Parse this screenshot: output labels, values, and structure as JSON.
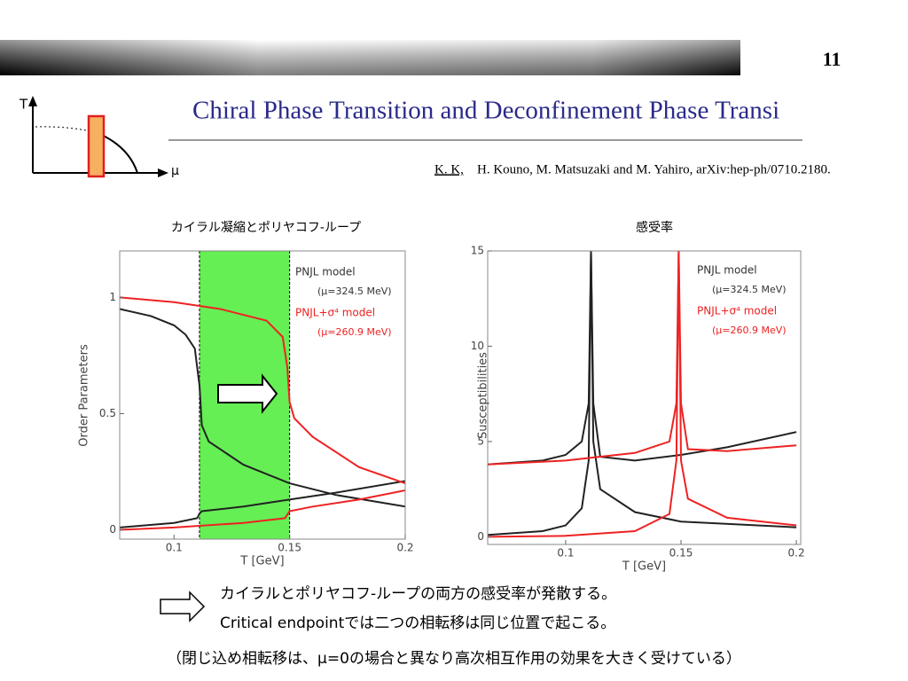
{
  "page_number": "11",
  "title": "Chiral Phase Transition and Deconfinement Phase Transi",
  "diagram": {
    "y_label": "T",
    "x_label": "μ"
  },
  "reference": {
    "author_underlined": "K. K,",
    "rest": "H. Kouno, M. Matsuzaki  and  M. Yahiro, arXiv:hep-ph/0710.2180."
  },
  "chart_data": [
    {
      "type": "line",
      "title": "カイラル凝縮とポリヤコフ-ループ",
      "xlabel": "T [GeV]",
      "ylabel": "Order Parameters",
      "xlim": [
        0.0765,
        0.2
      ],
      "ylim": [
        -0.04,
        1.2
      ],
      "xticks": [
        0.1,
        0.15,
        0.2
      ],
      "yticks": [
        0,
        0.5,
        1
      ],
      "band": {
        "x": [
          0.111,
          0.15
        ],
        "color": "#66ee55"
      },
      "legend": [
        {
          "name": "PNJL model",
          "note": "(μ=324.5 MeV)",
          "color": "#333333"
        },
        {
          "name": "PNJL+σ⁴ model",
          "note": "(μ=260.9 MeV)",
          "color": "#ee2222"
        }
      ],
      "series": [
        {
          "color": "#222222",
          "x": [
            0.0765,
            0.09,
            0.1,
            0.105,
            0.109,
            0.111,
            0.112,
            0.115,
            0.13,
            0.15,
            0.17,
            0.2
          ],
          "values": [
            0.95,
            0.92,
            0.88,
            0.84,
            0.78,
            0.62,
            0.45,
            0.38,
            0.28,
            0.2,
            0.15,
            0.1
          ]
        },
        {
          "color": "#222222",
          "x": [
            0.0765,
            0.1,
            0.11,
            0.111,
            0.112,
            0.13,
            0.15,
            0.17,
            0.2
          ],
          "values": [
            0.01,
            0.03,
            0.05,
            0.07,
            0.08,
            0.1,
            0.13,
            0.16,
            0.21
          ]
        },
        {
          "color": "#ee2222",
          "x": [
            0.0765,
            0.1,
            0.12,
            0.14,
            0.147,
            0.149,
            0.15,
            0.152,
            0.16,
            0.18,
            0.2
          ],
          "values": [
            1.0,
            0.98,
            0.95,
            0.9,
            0.83,
            0.7,
            0.55,
            0.48,
            0.4,
            0.27,
            0.2
          ]
        },
        {
          "color": "#ee2222",
          "x": [
            0.0765,
            0.1,
            0.13,
            0.148,
            0.15,
            0.16,
            0.18,
            0.2
          ],
          "values": [
            0.0,
            0.01,
            0.03,
            0.05,
            0.08,
            0.1,
            0.13,
            0.17
          ]
        }
      ]
    },
    {
      "type": "line",
      "title": "感受率",
      "xlabel": "T [GeV]",
      "ylabel": "Susceptibilities",
      "xlim": [
        0.0662,
        0.2019
      ],
      "ylim": [
        -0.4,
        15
      ],
      "xticks": [
        0.1,
        0.15,
        0.2
      ],
      "yticks": [
        0,
        5,
        10,
        15
      ],
      "legend": [
        {
          "name": "PNJL model",
          "note": "(μ=324.5 MeV)",
          "color": "#333333"
        },
        {
          "name": "PNJL+σ⁴ model",
          "note": "(μ=260.9 MeV)",
          "color": "#ee2222"
        }
      ],
      "series": [
        {
          "color": "#222222",
          "x": [
            0.0662,
            0.09,
            0.1,
            0.107,
            0.11,
            0.111,
            0.112,
            0.115,
            0.13,
            0.15,
            0.17,
            0.2
          ],
          "values": [
            3.8,
            4.0,
            4.3,
            5.0,
            7.0,
            15,
            7.0,
            4.2,
            4.0,
            4.3,
            4.7,
            5.5
          ]
        },
        {
          "color": "#222222",
          "x": [
            0.0662,
            0.09,
            0.1,
            0.107,
            0.11,
            0.111,
            0.112,
            0.115,
            0.13,
            0.15,
            0.2
          ],
          "values": [
            0.1,
            0.3,
            0.6,
            1.5,
            4.0,
            15,
            5.0,
            2.5,
            1.3,
            0.8,
            0.5
          ]
        },
        {
          "color": "#ee2222",
          "x": [
            0.0662,
            0.1,
            0.13,
            0.145,
            0.148,
            0.149,
            0.15,
            0.153,
            0.17,
            0.2
          ],
          "values": [
            3.8,
            4.0,
            4.4,
            5.0,
            7.0,
            15,
            7.0,
            4.6,
            4.5,
            4.8
          ]
        },
        {
          "color": "#ee2222",
          "x": [
            0.0662,
            0.1,
            0.13,
            0.145,
            0.148,
            0.149,
            0.15,
            0.153,
            0.17,
            0.2
          ],
          "values": [
            0.0,
            0.05,
            0.3,
            1.2,
            4.0,
            15,
            4.0,
            2.0,
            1.0,
            0.6
          ]
        }
      ]
    }
  ],
  "notes": [
    "カイラルとポリヤコフ-ループの両方の感受率が発散する。",
    "Critical endpointでは二つの相転移は同じ位置で起こる。",
    "（閉じ込め相転移は、μ=0の場合と異なり高次相互作用の効果を大きく受けている）"
  ]
}
